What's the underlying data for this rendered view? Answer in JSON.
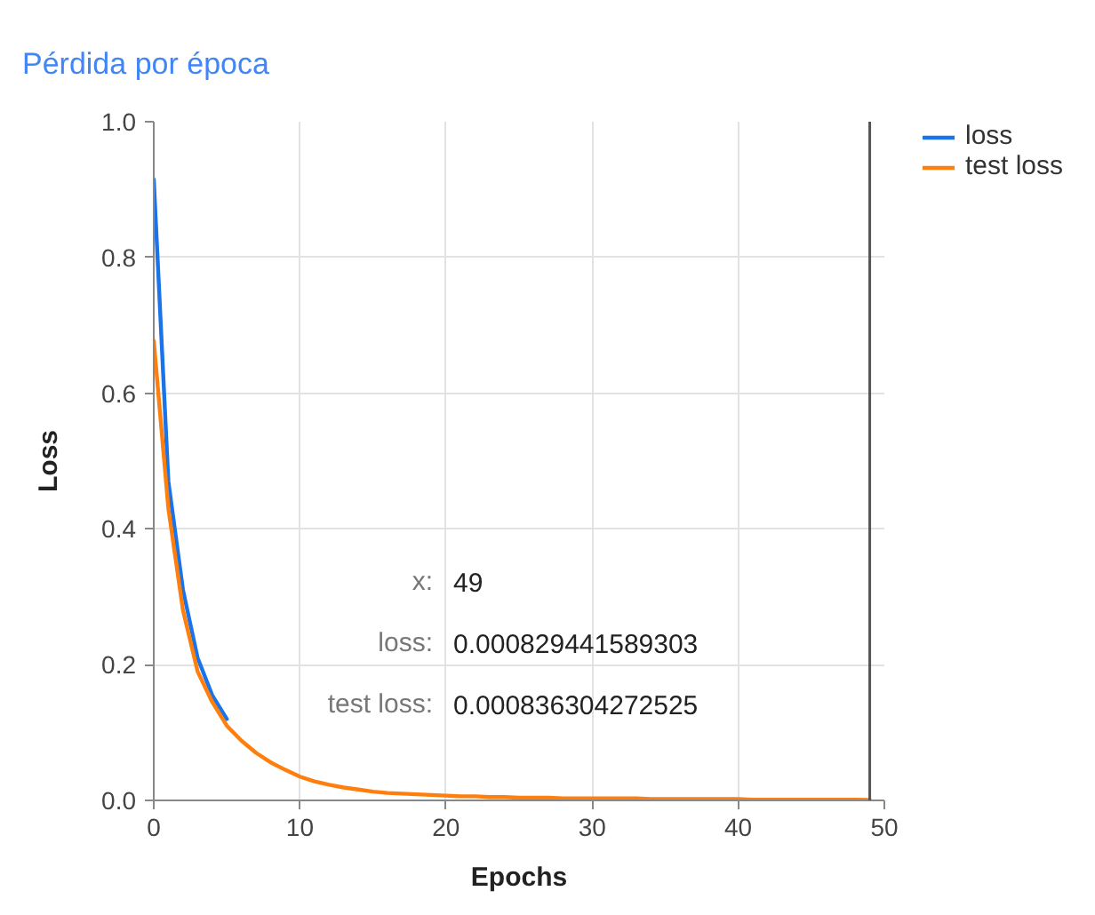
{
  "chart_data": {
    "type": "line",
    "title": "Pérdida por época",
    "xlabel": "Epochs",
    "ylabel": "Loss",
    "x": [
      0,
      1,
      2,
      3,
      4,
      5,
      6,
      7,
      8,
      9,
      10,
      11,
      12,
      13,
      14,
      15,
      16,
      17,
      18,
      19,
      20,
      21,
      22,
      23,
      24,
      25,
      26,
      27,
      28,
      29,
      30,
      31,
      32,
      33,
      34,
      35,
      36,
      37,
      38,
      39,
      40,
      41,
      42,
      43,
      44,
      45,
      46,
      47,
      48,
      49
    ],
    "series": [
      {
        "name": "loss",
        "color": "#1a73e8",
        "values": [
          0.915,
          0.47,
          0.31,
          0.21,
          0.155,
          0.12,
          null,
          null,
          null,
          null,
          null,
          null,
          null,
          null,
          null,
          null,
          null,
          null,
          null,
          null,
          null,
          null,
          null,
          null,
          null,
          null,
          null,
          null,
          null,
          null,
          null,
          null,
          null,
          null,
          null,
          null,
          null,
          null,
          null,
          null,
          null,
          null,
          null,
          null,
          null,
          null,
          null,
          null,
          null,
          null
        ]
      },
      {
        "name": "test loss",
        "color": "#ff7f0e",
        "values": [
          0.677,
          0.43,
          0.28,
          0.19,
          0.145,
          0.11,
          0.088,
          0.07,
          0.056,
          0.045,
          0.035,
          0.028,
          0.023,
          0.019,
          0.016,
          0.013,
          0.011,
          0.01,
          0.009,
          0.008,
          0.007,
          0.006,
          0.006,
          0.005,
          0.005,
          0.004,
          0.004,
          0.004,
          0.003,
          0.003,
          0.003,
          0.003,
          0.003,
          0.003,
          0.002,
          0.002,
          0.002,
          0.002,
          0.002,
          0.002,
          0.002,
          0.001,
          0.001,
          0.001,
          0.001,
          0.001,
          0.001,
          0.001,
          0.001,
          0.000836304272525
        ]
      }
    ],
    "xlim": [
      0,
      50
    ],
    "xticks": [
      0,
      10,
      20,
      30,
      40,
      50
    ],
    "ylim": [
      0,
      1
    ],
    "yticks": [
      {
        "value": 0,
        "label": "0.0"
      },
      0.2,
      0.4,
      0.6,
      0.8,
      {
        "value": 1,
        "label": "1.0"
      }
    ],
    "grid": true,
    "legend": "top right",
    "line_style": "solid",
    "ref_lines": [
      {
        "axis": "x",
        "value": 49,
        "color": "#555555"
      }
    ],
    "annotations": [
      "x: 49",
      "loss: 0.000829441589303",
      "test loss: 0.000836304272525"
    ]
  }
}
